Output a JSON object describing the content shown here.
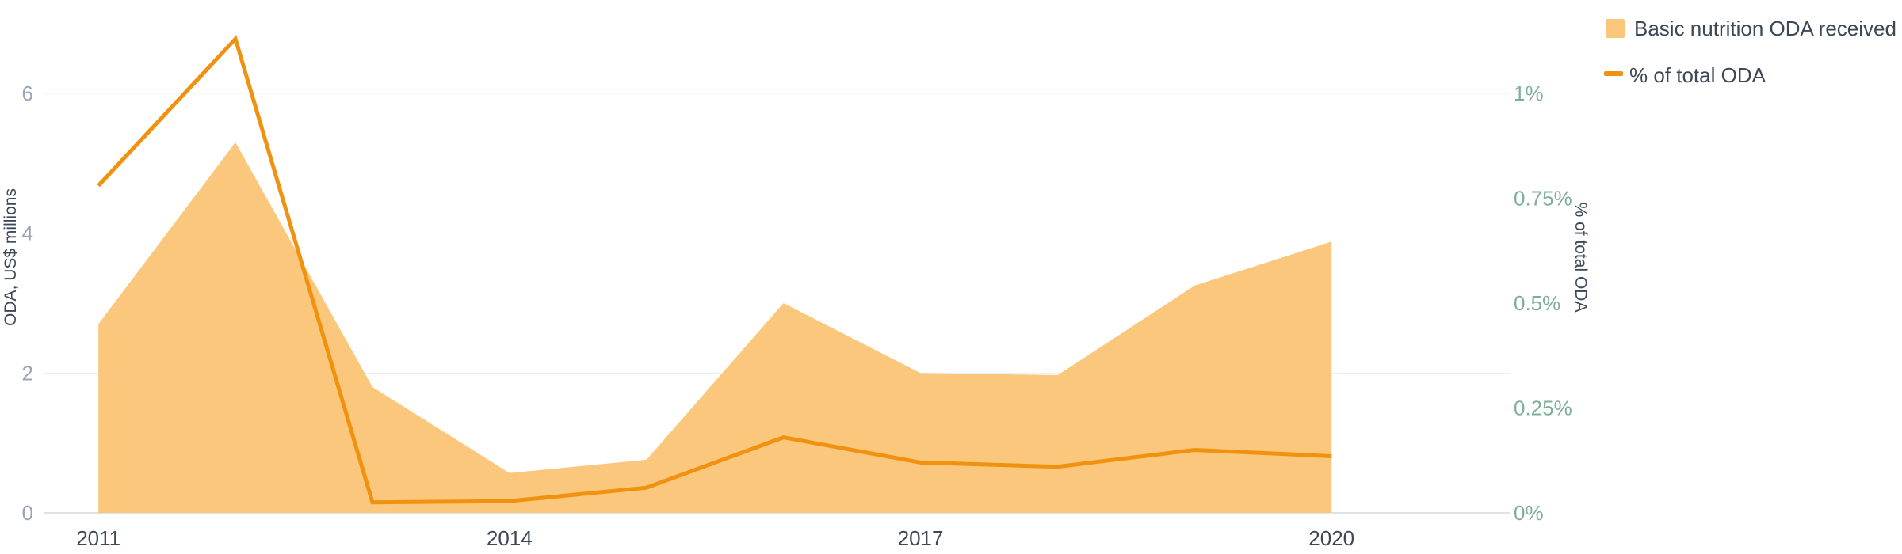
{
  "chart_data": {
    "type": "area",
    "x": [
      2011,
      2012,
      2013,
      2014,
      2015,
      2016,
      2017,
      2018,
      2019,
      2020
    ],
    "x_ticks": [
      "2011",
      "2014",
      "2017",
      "2020"
    ],
    "xlim": [
      2010.6,
      2021.3
    ],
    "series": [
      {
        "name": "Basic nutrition ODA received",
        "type": "area",
        "axis": "left",
        "color": "#fbc77c",
        "values": [
          2.7,
          5.3,
          1.8,
          0.57,
          0.76,
          3.0,
          2.0,
          1.97,
          3.25,
          3.88
        ]
      },
      {
        "name": "% of total ODA",
        "type": "line",
        "axis": "right",
        "color": "#f0920f",
        "values": [
          0.78,
          1.13,
          0.025,
          0.028,
          0.06,
          0.18,
          0.12,
          0.11,
          0.15,
          0.135
        ]
      }
    ],
    "y_left": {
      "label": "ODA, US$ millions",
      "ylim": [
        0,
        6
      ],
      "ticks": [
        0,
        2,
        4,
        6
      ],
      "tick_labels": [
        "0",
        "2",
        "4",
        "6"
      ]
    },
    "y_right": {
      "label": "% of total ODA",
      "ylim": [
        0,
        1
      ],
      "ticks": [
        0,
        0.25,
        0.5,
        0.75,
        1
      ],
      "tick_labels": [
        "0%",
        "0.25%",
        "0.5%",
        "0.75%",
        "1%"
      ]
    },
    "grid": true,
    "legend": "top-right"
  }
}
